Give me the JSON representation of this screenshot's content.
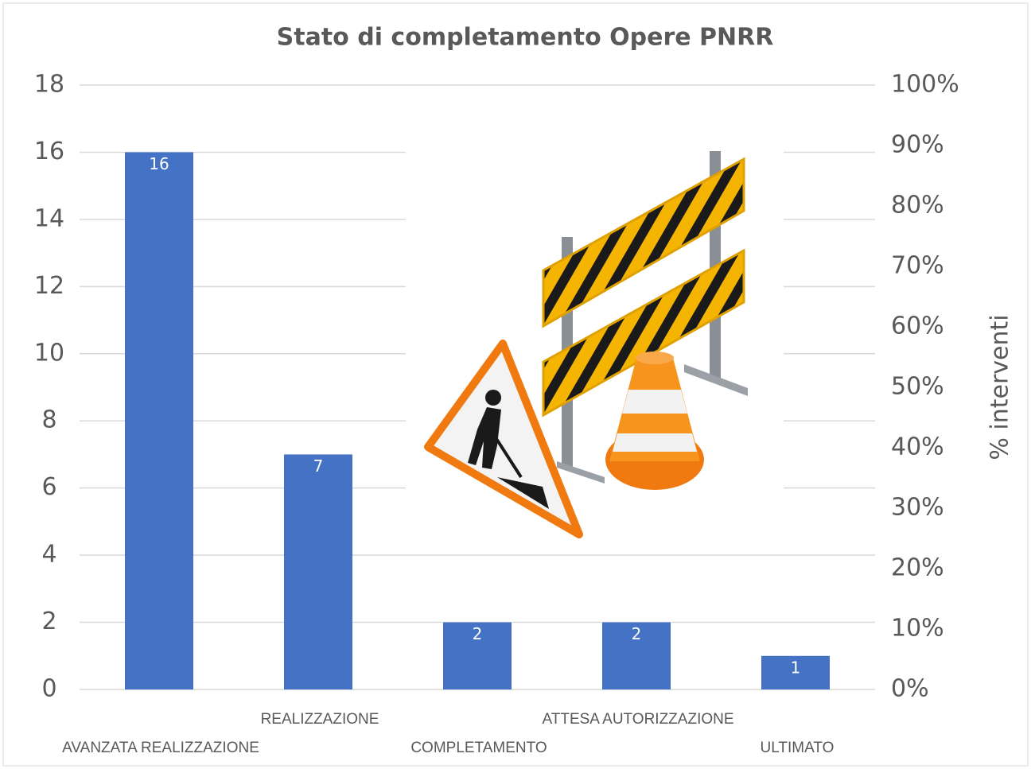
{
  "chart_data": {
    "type": "bar",
    "title": "Stato di completamento Opere PNRR",
    "categories": [
      "AVANZATA REALIZZAZIONE",
      "REALIZZAZIONE",
      "COMPLETAMENTO",
      "ATTESA AUTORIZZAZIONE",
      "ULTIMATO"
    ],
    "values": [
      16,
      7,
      2,
      2,
      1
    ],
    "color": "#4472c4",
    "ylim": [
      0,
      18
    ],
    "yticks": [
      0,
      2,
      4,
      6,
      8,
      10,
      12,
      14,
      16,
      18
    ],
    "y2label": "% interventi",
    "y2lim": [
      0,
      100
    ],
    "y2ticks": [
      {
        "value": 0,
        "label": "0%"
      },
      {
        "value": 10,
        "label": "10%"
      },
      {
        "value": 20,
        "label": "20%"
      },
      {
        "value": 30,
        "label": "30%"
      },
      {
        "value": 40,
        "label": "40%"
      },
      {
        "value": 50,
        "label": "50%"
      },
      {
        "value": 60,
        "label": "60%"
      },
      {
        "value": 70,
        "label": "70%"
      },
      {
        "value": 80,
        "label": "80%"
      },
      {
        "value": 90,
        "label": "90%"
      },
      {
        "value": 100,
        "label": "100%"
      }
    ],
    "grid": true
  }
}
